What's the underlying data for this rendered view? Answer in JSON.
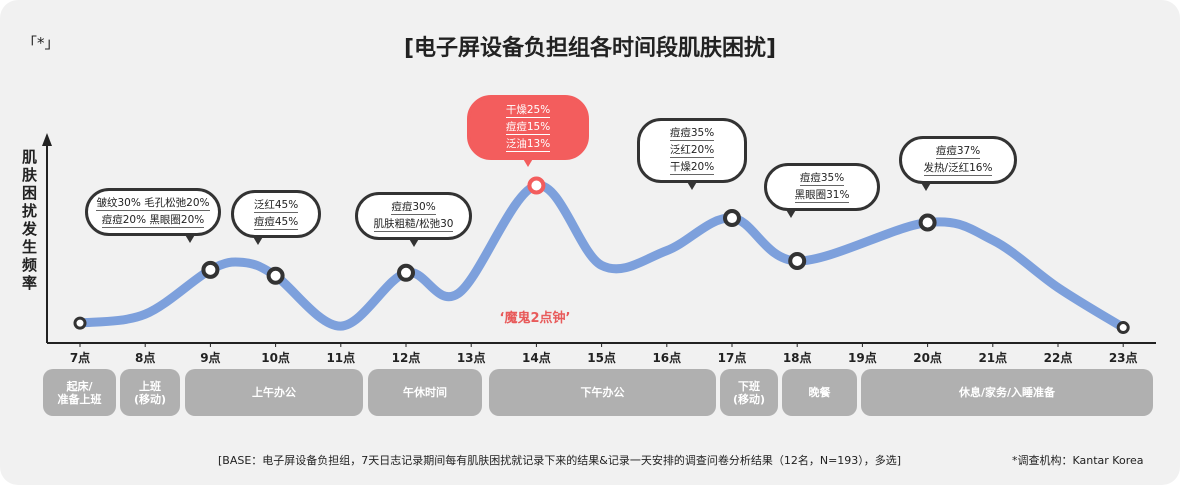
{
  "corner_mark": "「*」",
  "title": "[电子屏设备负担组各时间段肌肤困扰]",
  "chart_data": {
    "type": "line",
    "ylabel": "肌肤困扰发生频率",
    "x_ticks": [
      "7点",
      "8点",
      "9点",
      "10点",
      "11点",
      "12点",
      "13点",
      "14点",
      "15点",
      "16点",
      "17点",
      "18点",
      "19点",
      "20点",
      "21点",
      "22点",
      "23点"
    ],
    "markers": [
      {
        "hour": 7,
        "level": 0.06
      },
      {
        "hour": 9,
        "level": 0.42
      },
      {
        "hour": 10,
        "level": 0.38
      },
      {
        "hour": 12,
        "level": 0.4
      },
      {
        "hour": 14,
        "level": 0.99
      },
      {
        "hour": 17,
        "level": 0.77
      },
      {
        "hour": 18,
        "level": 0.48
      },
      {
        "hour": 20,
        "level": 0.74
      },
      {
        "hour": 23,
        "level": 0.03
      }
    ],
    "curve": [
      {
        "hour": 7,
        "level": 0.06
      },
      {
        "hour": 8,
        "level": 0.12
      },
      {
        "hour": 9,
        "level": 0.42
      },
      {
        "hour": 9.5,
        "level": 0.47
      },
      {
        "hour": 10,
        "level": 0.38
      },
      {
        "hour": 11,
        "level": 0.04
      },
      {
        "hour": 12,
        "level": 0.4
      },
      {
        "hour": 12.8,
        "level": 0.26
      },
      {
        "hour": 14,
        "level": 0.99
      },
      {
        "hour": 15,
        "level": 0.45
      },
      {
        "hour": 16,
        "level": 0.55
      },
      {
        "hour": 17,
        "level": 0.77
      },
      {
        "hour": 18,
        "level": 0.48
      },
      {
        "hour": 20,
        "level": 0.74
      },
      {
        "hour": 21,
        "level": 0.62
      },
      {
        "hour": 22,
        "level": 0.3
      },
      {
        "hour": 23,
        "level": 0.03
      }
    ],
    "annotations": [
      {
        "hour": 9,
        "lines": [
          "皱纹30% 毛孔松弛20%",
          "痘痘20% 黑眼圈20%"
        ],
        "highlight": false
      },
      {
        "hour": 10,
        "lines": [
          "泛红45%",
          "痘痘45%"
        ],
        "highlight": false
      },
      {
        "hour": 12,
        "lines": [
          "痘痘30%",
          "肌肤粗糙/松弛30"
        ],
        "highlight": false
      },
      {
        "hour": 14,
        "lines": [
          "干燥25%",
          "痘痘15%",
          "泛油13%"
        ],
        "highlight": true
      },
      {
        "hour": 17,
        "lines": [
          "痘痘35%",
          "泛红20%",
          "干燥20%"
        ],
        "highlight": false
      },
      {
        "hour": 18,
        "lines": [
          "痘痘35%",
          "黑眼圈31%"
        ],
        "highlight": false
      },
      {
        "hour": 20,
        "lines": [
          "痘痘37%",
          "发热/泛红16%"
        ],
        "highlight": false
      }
    ],
    "callout": "‘魔鬼2点钟’",
    "line_color": "#7da0dc",
    "highlight_color": "#f35d5d"
  },
  "periods": [
    {
      "label": "起床/\n准备上班"
    },
    {
      "label": "上班\n(移动)"
    },
    {
      "label": "上午办公"
    },
    {
      "label": "午休时间"
    },
    {
      "label": "下午办公"
    },
    {
      "label": "下班\n(移动)"
    },
    {
      "label": "晚餐"
    },
    {
      "label": "休息/家务/入睡准备"
    }
  ],
  "footnote": "[BASE：电子屏设备负担组，7天日志记录期间每有肌肤困扰就记录下来的结果&记录一天安排的调查问卷分析结果（12名，N=193），多选]",
  "source": "*调查机构：Kantar Korea"
}
